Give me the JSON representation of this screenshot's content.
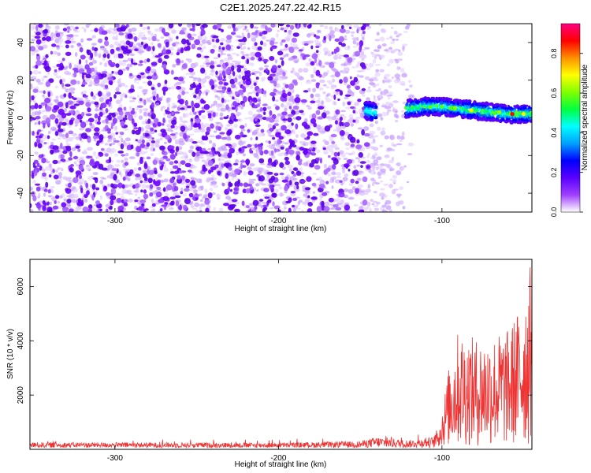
{
  "title": "C2E1.2025.247.22.42.R15",
  "chart_data": [
    {
      "type": "heatmap",
      "xlabel": "Height of straight line (km)",
      "ylabel": "Frequency (Hz)",
      "xlim": [
        -352,
        -45
      ],
      "ylim": [
        -50,
        50
      ],
      "xticks": [
        -300,
        -200,
        -100
      ],
      "yticks": [
        40,
        20,
        0,
        -20,
        -40
      ],
      "colorbar": {
        "label": "Normalized spectral amplitude",
        "range": [
          0,
          0.95
        ],
        "ticks": [
          "0.0",
          "0.2",
          "0.4",
          "0.6",
          "0.8"
        ],
        "tick_values": [
          0.0,
          0.2,
          0.4,
          0.6,
          0.8
        ],
        "colormap": [
          "#ffffff",
          "#a040ff",
          "#5a00ff",
          "#0000ff",
          "#00a0ff",
          "#00ffff",
          "#00ff40",
          "#80ff00",
          "#ffff00",
          "#ff9000",
          "#ff0000",
          "#ff0080"
        ]
      },
      "signal_track": [
        {
          "x": -147,
          "y": 4
        },
        {
          "x": -140,
          "y": 3
        },
        {
          "x": -120,
          "y": 5
        },
        {
          "x": -110,
          "y": 6
        },
        {
          "x": -100,
          "y": 6
        },
        {
          "x": -90,
          "y": 5
        },
        {
          "x": -80,
          "y": 4
        },
        {
          "x": -70,
          "y": 3
        },
        {
          "x": -60,
          "y": 2
        },
        {
          "x": -50,
          "y": 2
        },
        {
          "x": -45,
          "y": 2
        }
      ],
      "noise_edge_x": -110
    },
    {
      "type": "line",
      "xlabel": "Height of straight line (km)",
      "ylabel": "SNR (10 * v/v)",
      "xlim": [
        -352,
        -45
      ],
      "ylim": [
        0,
        7000
      ],
      "xticks": [
        -300,
        -200,
        -100
      ],
      "yticks": [
        2000,
        4000,
        6000
      ],
      "color": "#ee3333",
      "envelope": [
        {
          "x": -352,
          "y": 250
        },
        {
          "x": -200,
          "y": 230
        },
        {
          "x": -150,
          "y": 300
        },
        {
          "x": -140,
          "y": 500
        },
        {
          "x": -120,
          "y": 350
        },
        {
          "x": -105,
          "y": 500
        },
        {
          "x": -100,
          "y": 1400
        },
        {
          "x": -95,
          "y": 3200
        },
        {
          "x": -90,
          "y": 4300
        },
        {
          "x": -80,
          "y": 4000
        },
        {
          "x": -70,
          "y": 4100
        },
        {
          "x": -60,
          "y": 4300
        },
        {
          "x": -52,
          "y": 5200
        },
        {
          "x": -48,
          "y": 6200
        },
        {
          "x": -45,
          "y": 7000
        }
      ]
    }
  ]
}
